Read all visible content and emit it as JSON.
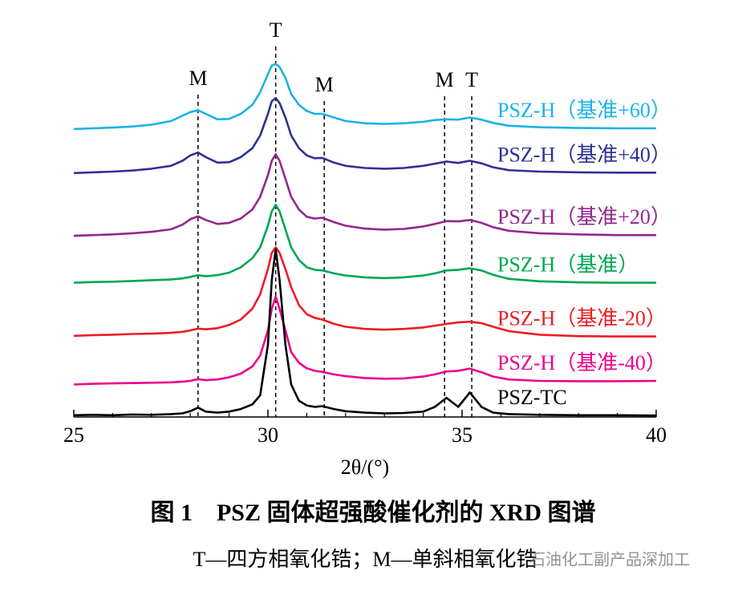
{
  "chart_data": {
    "type": "line",
    "xlabel": "2θ/(°)",
    "caption": "图 1　PSZ 固体超强酸催化剂的 XRD 图谱",
    "subcaption": "T—四方相氧化锆；M—单斜相氧化锆",
    "watermark": "石油化工副产品深加工",
    "xlim": [
      25,
      40
    ],
    "xticks": [
      25,
      30,
      35,
      40
    ],
    "minor_xticks": [
      26,
      27,
      28,
      29,
      31,
      32,
      33,
      34,
      36,
      37,
      38,
      39
    ],
    "ylim": [
      0,
      100
    ],
    "annotations": [
      {
        "label": "M",
        "x": 28.2
      },
      {
        "label": "T",
        "x": 30.2
      },
      {
        "label": "M",
        "x": 31.45
      },
      {
        "label": "M",
        "x": 34.55
      },
      {
        "label": "T",
        "x": 35.25
      }
    ],
    "x": [
      25,
      25.5,
      26,
      26.5,
      27,
      27.5,
      27.8,
      28.0,
      28.2,
      28.4,
      28.7,
      29.0,
      29.3,
      29.6,
      29.8,
      30.0,
      30.1,
      30.2,
      30.3,
      30.45,
      30.6,
      30.8,
      31.0,
      31.2,
      31.4,
      31.7,
      32,
      32.5,
      33,
      33.5,
      34,
      34.3,
      34.6,
      34.9,
      35.2,
      35.5,
      35.8,
      36.2,
      37,
      38,
      39,
      40
    ],
    "series": [
      {
        "name": "PSZ-H（基准+60）",
        "color": "#1ab2e8",
        "values": [
          79.8,
          80,
          80.2,
          80.5,
          81,
          82,
          83.5,
          84.5,
          85,
          84,
          82.5,
          82.6,
          84,
          86.5,
          90,
          95,
          97.4,
          97.8,
          97,
          94,
          89.5,
          86.5,
          84.8,
          84,
          84,
          83,
          82,
          81.4,
          81.2,
          81.4,
          81.8,
          82.3,
          82.5,
          82.4,
          83,
          82.4,
          81.5,
          80.7,
          80.3,
          80.1,
          80,
          80
        ]
      },
      {
        "name": "PSZ-H（基准+40）",
        "color": "#2e3192",
        "values": [
          67.6,
          67.8,
          68,
          68.3,
          68.8,
          69.6,
          71,
          72.5,
          73.3,
          72,
          70.5,
          70.6,
          72,
          74.5,
          78,
          84,
          87.5,
          88.4,
          87,
          83,
          78,
          74.5,
          72.5,
          71.7,
          71.8,
          70.5,
          69.6,
          69,
          68.8,
          69,
          69.6,
          70.2,
          70.8,
          70.4,
          71,
          70.3,
          69.2,
          68.4,
          68,
          67.8,
          67.7,
          67.7
        ]
      },
      {
        "name": "PSZ-H（基准+20）",
        "color": "#92278f",
        "values": [
          50.2,
          50.4,
          50.6,
          50.9,
          51.3,
          52,
          53.3,
          54.8,
          55.6,
          54.6,
          53.5,
          53.8,
          55,
          57.5,
          61,
          67,
          71,
          72.8,
          71,
          66,
          61,
          57.5,
          55.5,
          55,
          55.2,
          54,
          53,
          52.2,
          51.9,
          52.1,
          52.8,
          53.5,
          54.3,
          54.2,
          54.6,
          53.8,
          52.6,
          51.6,
          50.9,
          50.6,
          50.4,
          50.4
        ]
      },
      {
        "name": "PSZ-H（基准）",
        "color": "#00a651",
        "values": [
          37.2,
          37.4,
          37.5,
          37.7,
          37.9,
          38.1,
          38.4,
          38.8,
          39.3,
          39,
          39.3,
          40,
          41.5,
          44,
          47,
          53,
          57,
          58.8,
          57,
          52,
          47,
          43.5,
          41.5,
          40.8,
          40.6,
          39.8,
          39.2,
          38.7,
          38.5,
          38.7,
          39.2,
          39.8,
          40.6,
          40.8,
          41.2,
          40.6,
          39.4,
          38.3,
          37.6,
          37.3,
          37.2,
          37.2
        ]
      },
      {
        "name": "PSZ-H（基准-20）",
        "color": "#ed1c24",
        "values": [
          22.5,
          22.7,
          22.8,
          23,
          23.1,
          23.3,
          23.6,
          24,
          24.5,
          24.3,
          24.6,
          25.5,
          27,
          30,
          34,
          41,
          45.5,
          47,
          45.5,
          41,
          36,
          31,
          28.5,
          27.5,
          27,
          25.8,
          25,
          24.4,
          24.2,
          24.4,
          24.8,
          25.3,
          25.8,
          26.2,
          26.4,
          26,
          25,
          23.8,
          22.8,
          22.4,
          22.3,
          22.3
        ]
      },
      {
        "name": "PSZ-H（基准-40）",
        "color": "#ec008c",
        "values": [
          9.0,
          9.2,
          9.3,
          9.4,
          9.5,
          9.6,
          9.8,
          10.0,
          10.5,
          10.2,
          10.4,
          11,
          12,
          14,
          17,
          24,
          30,
          33.3,
          30,
          24,
          18,
          15,
          13.5,
          12.8,
          12.5,
          11.8,
          11.3,
          10.8,
          10.6,
          10.7,
          11.2,
          11.8,
          12.6,
          12.8,
          13.4,
          12.4,
          11.2,
          10.4,
          10,
          9.9,
          9.9,
          10.0
        ]
      },
      {
        "name": "PSZ-TC",
        "color": "#000000",
        "values": [
          0.5,
          0.6,
          0.5,
          0.7,
          0.6,
          0.8,
          1.0,
          1.6,
          2.6,
          1.5,
          1.2,
          1.5,
          2.2,
          3.5,
          6,
          20,
          38,
          46.5,
          38,
          20,
          9,
          4.5,
          3.2,
          2.8,
          3.0,
          2.2,
          1.6,
          1.2,
          1.0,
          1.1,
          1.5,
          2.8,
          5.3,
          2.8,
          6.8,
          2.8,
          1.2,
          0.8,
          0.6,
          0.5,
          0.5,
          0.4
        ]
      }
    ]
  }
}
